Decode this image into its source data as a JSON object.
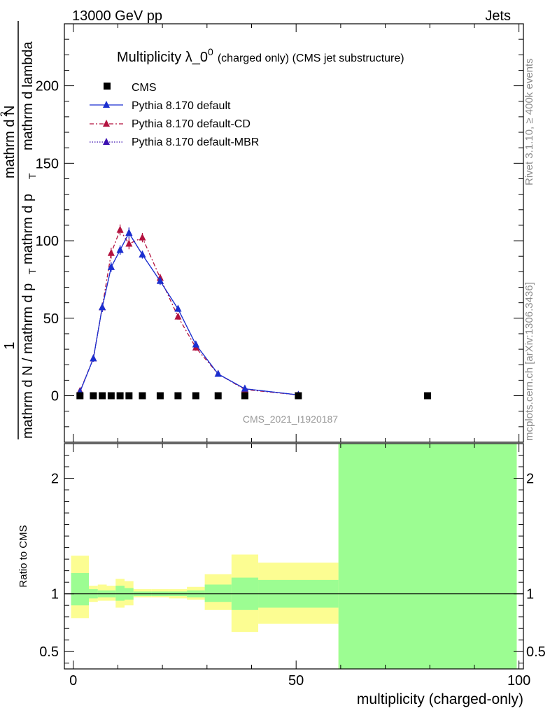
{
  "header": {
    "energy": "13000 GeV pp",
    "category": "Jets",
    "rivet": "Rivet 3.1.10, ≥ 400k events",
    "mcplots": "mcplots.cern.ch [arXiv:1306.3436]",
    "analysis_id": "CMS_2021_I1920187"
  },
  "chart_data": [
    {
      "type": "scatter",
      "title": "Multiplicity λ_0",
      "title_superscript": "0",
      "subtitle": "(charged only) (CMS jet substructure)",
      "xlabel": "multiplicity (charged-only)",
      "ylabel_lines": [
        "1",
        "mathrm d N / mathrm d p",
        "T",
        "mathrm d N",
        "2",
        "mathrm d p",
        "T",
        "mathrm d lambda"
      ],
      "xlim": [
        -2,
        101
      ],
      "ylim": [
        -30,
        240
      ],
      "yticks": [
        0,
        50,
        100,
        150,
        200
      ],
      "yticklabels": [
        "0",
        "50",
        "100",
        "150",
        "200"
      ],
      "legend_position": "top-left",
      "cms": {
        "name": "CMS",
        "x": [
          1.5,
          4.5,
          6.5,
          8.5,
          10.5,
          12.5,
          15.5,
          19.5,
          23.5,
          27.5,
          32.5,
          38.5,
          50.5,
          79.5
        ],
        "y": [
          0,
          0,
          0,
          0,
          0,
          0,
          0,
          0,
          0,
          0,
          0,
          0,
          0,
          0
        ]
      },
      "series": [
        {
          "name": "Pythia 8.170 default",
          "color": "#1a2fd0",
          "dash": "solid",
          "x": [
            1.5,
            4.5,
            6.5,
            8.5,
            10.5,
            12.5,
            15.5,
            19.5,
            23.5,
            27.5,
            32.5,
            38.5,
            50.5
          ],
          "y": [
            2.5,
            24,
            57,
            83,
            94,
            105,
            91,
            74,
            56,
            33,
            14,
            4.5,
            0.5
          ],
          "err": [
            0.5,
            2,
            3,
            3,
            3,
            3.5,
            2.5,
            2.5,
            2,
            2,
            1.5,
            1,
            0.3
          ]
        },
        {
          "name": "Pythia 8.170 default-CD",
          "color": "#b3123f",
          "dash": "dashdot",
          "x": [
            1.5,
            4.5,
            6.5,
            8.5,
            10.5,
            12.5,
            15.5,
            19.5,
            23.5,
            27.5,
            32.5,
            38.5,
            50.5
          ],
          "y": [
            3,
            24,
            57,
            92,
            107,
            98,
            102,
            76,
            51,
            31,
            14,
            4,
            0.5
          ],
          "err": [
            0.5,
            2,
            3,
            3.5,
            3.5,
            3.5,
            3,
            2.5,
            2,
            2,
            1.5,
            1,
            0.3
          ]
        },
        {
          "name": "Pythia 8.170 default-MBR",
          "color": "#3b10b0",
          "dash": "dotted",
          "x": [
            1.5,
            4.5,
            6.5,
            8.5,
            10.5,
            12.5,
            15.5,
            19.5,
            23.5,
            27.5,
            32.5,
            38.5,
            50.5
          ],
          "y": [
            2.5,
            24,
            57,
            83,
            94,
            105,
            91,
            74,
            56,
            33,
            14,
            4.5,
            0.5
          ],
          "err": [
            0.5,
            2,
            3,
            3,
            3,
            3.5,
            2.5,
            2.5,
            2,
            2,
            1.5,
            1,
            0.3
          ]
        }
      ]
    },
    {
      "type": "area",
      "ylabel": "Ratio to CMS",
      "xlabel": "multiplicity (charged-only)",
      "xlim": [
        -2,
        101
      ],
      "ylim": [
        0.35,
        2.3
      ],
      "yticks": [
        0.5,
        1,
        2
      ],
      "yticklabels": [
        "0.5",
        "1",
        "2"
      ],
      "xticks": [
        0,
        50,
        100
      ],
      "xticklabels": [
        "0",
        "50",
        "100"
      ],
      "reference_line": 1,
      "bins": [
        {
          "lo": -0.5,
          "hi": 3.5,
          "g_lo": 0.9,
          "g_hi": 1.18,
          "y_lo": 0.79,
          "y_hi": 1.33
        },
        {
          "lo": 3.5,
          "hi": 5.5,
          "g_lo": 0.96,
          "g_hi": 1.04,
          "y_lo": 0.93,
          "y_hi": 1.07
        },
        {
          "lo": 5.5,
          "hi": 7.5,
          "g_lo": 0.97,
          "g_hi": 1.03,
          "y_lo": 0.94,
          "y_hi": 1.08
        },
        {
          "lo": 7.5,
          "hi": 9.5,
          "g_lo": 0.97,
          "g_hi": 1.03,
          "y_lo": 0.94,
          "y_hi": 1.07
        },
        {
          "lo": 9.5,
          "hi": 11.5,
          "g_lo": 0.94,
          "g_hi": 1.07,
          "y_lo": 0.88,
          "y_hi": 1.13
        },
        {
          "lo": 11.5,
          "hi": 13.5,
          "g_lo": 0.95,
          "g_hi": 1.05,
          "y_lo": 0.9,
          "y_hi": 1.11
        },
        {
          "lo": 13.5,
          "hi": 17.5,
          "g_lo": 0.98,
          "g_hi": 1.02,
          "y_lo": 0.97,
          "y_hi": 1.04
        },
        {
          "lo": 17.5,
          "hi": 21.5,
          "g_lo": 0.98,
          "g_hi": 1.02,
          "y_lo": 0.97,
          "y_hi": 1.04
        },
        {
          "lo": 21.5,
          "hi": 25.5,
          "g_lo": 0.98,
          "g_hi": 1.02,
          "y_lo": 0.96,
          "y_hi": 1.04
        },
        {
          "lo": 25.5,
          "hi": 29.5,
          "g_lo": 0.97,
          "g_hi": 1.03,
          "y_lo": 0.95,
          "y_hi": 1.06
        },
        {
          "lo": 29.5,
          "hi": 35.5,
          "g_lo": 0.93,
          "g_hi": 1.08,
          "y_lo": 0.86,
          "y_hi": 1.17
        },
        {
          "lo": 35.5,
          "hi": 41.5,
          "g_lo": 0.86,
          "g_hi": 1.14,
          "y_lo": 0.67,
          "y_hi": 1.34
        },
        {
          "lo": 41.5,
          "hi": 59.5,
          "g_lo": 0.88,
          "g_hi": 1.12,
          "y_lo": 0.74,
          "y_hi": 1.27
        },
        {
          "lo": 59.5,
          "hi": 99.5,
          "g_lo": 0.35,
          "g_hi": 2.3,
          "y_lo": 0.35,
          "y_hi": 2.3
        }
      ]
    }
  ],
  "colors": {
    "band_inner": "#9cfd92",
    "band_outer": "#fcfd92",
    "axis": "#000000",
    "watermark": "#8c8c8c"
  }
}
